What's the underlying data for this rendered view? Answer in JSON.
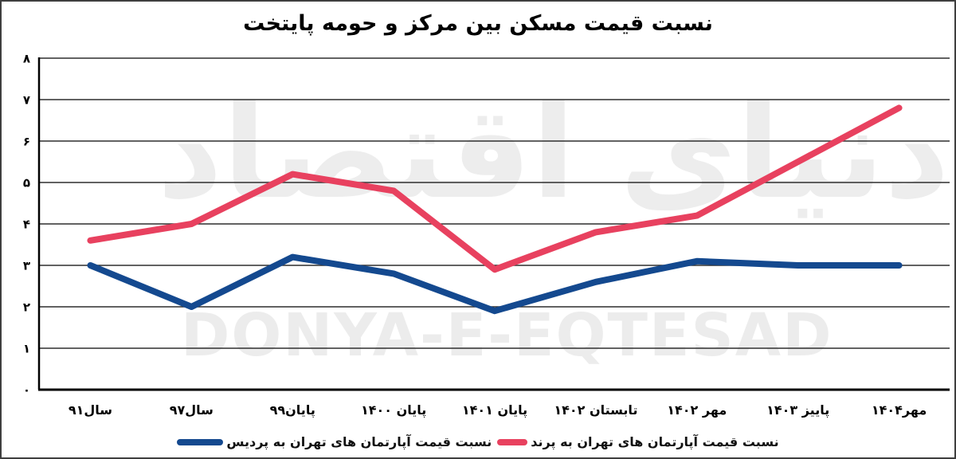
{
  "title": "نسبت قیمت مسکن بین مرکز و حومه پایتخت",
  "chart_data": {
    "type": "line",
    "title": "نسبت قیمت مسکن بین مرکز و حومه پایتخت",
    "categories": [
      "سال۹۱",
      "سال۹۷",
      "پایان۹۹",
      "پایان ۱۴۰۰",
      "پایان ۱۴۰۱",
      "تابستان ۱۴۰۲",
      "مهر ۱۴۰۲",
      "پاییز ۱۴۰۳",
      "مهر۱۴۰۴"
    ],
    "series": [
      {
        "name": "نسبت قیمت آپارتمان های تهران به پرند",
        "color": "#e8415f",
        "values": [
          3.6,
          4.0,
          5.2,
          4.8,
          2.9,
          3.8,
          4.2,
          5.5,
          6.8
        ]
      },
      {
        "name": "نسبت قیمت آپارتمان های تهران به پردیس",
        "color": "#14498f",
        "values": [
          3.0,
          2.0,
          3.2,
          2.8,
          1.9,
          2.6,
          3.1,
          3.0,
          3.0
        ]
      }
    ],
    "ylim": [
      0,
      8
    ],
    "ytick_labels": [
      "۰",
      "۱",
      "۲",
      "۳",
      "۴",
      "۵",
      "۶",
      "۷",
      "۸"
    ],
    "xlabel": "",
    "ylabel": "",
    "grid": "horizontal",
    "legend_position": "bottom",
    "rtl": true
  },
  "legend": {
    "pardis_label": "نسبت قیمت آپارتمان های تهران به پردیس",
    "parand_label": "نسبت قیمت آپارتمان های تهران به پرند"
  },
  "watermark": {
    "persian": "دنیای اقتصاد",
    "latin": "DONYA-E-EQTESAD"
  },
  "colors": {
    "parand_pink": "#e8415f",
    "pardis_blue": "#14498f",
    "grid": "#2e2e2e",
    "axis": "#000000",
    "watermark_gray": "#ededed",
    "border": "#3f3f3f",
    "text": "#000000"
  }
}
